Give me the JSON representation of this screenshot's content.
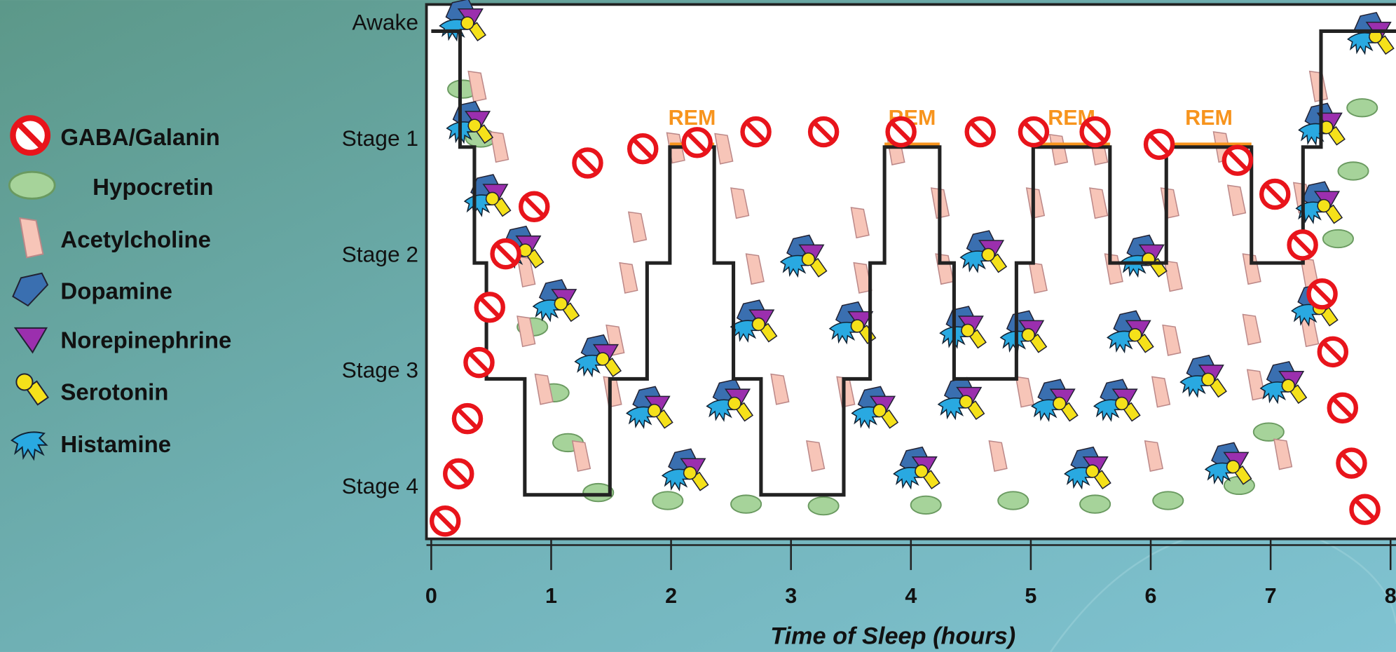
{
  "chart_data": {
    "type": "line",
    "x_label": "Time of Sleep (hours)",
    "x": [
      0,
      0.24,
      0.24,
      0.36,
      0.36,
      0.46,
      0.46,
      0.78,
      0.78,
      1.49,
      1.49,
      1.8,
      1.8,
      1.99,
      1.99,
      2.36,
      2.36,
      2.52,
      2.52,
      2.75,
      2.75,
      3.44,
      3.44,
      3.66,
      3.66,
      3.78,
      3.78,
      4.24,
      4.24,
      4.36,
      4.36,
      4.88,
      4.88,
      5.02,
      5.02,
      5.66,
      5.66,
      6.13,
      6.13,
      6.84,
      6.84,
      7.27,
      7.27,
      7.42,
      7.42,
      8.09
    ],
    "values": [
      0,
      0,
      1,
      1,
      2,
      2,
      3,
      3,
      4,
      4,
      3,
      3,
      2,
      2,
      1,
      1,
      2,
      2,
      3,
      3,
      4,
      4,
      3,
      3,
      2,
      2,
      1,
      1,
      2,
      2,
      3,
      3,
      2,
      2,
      1,
      1,
      2,
      2,
      1,
      1,
      2,
      2,
      1,
      1,
      0,
      0
    ],
    "color": "#222222",
    "xlim": [
      -0.04,
      8.09
    ],
    "xticks": [
      0,
      1,
      2,
      3,
      4,
      5,
      6,
      7,
      8
    ],
    "ylim": [
      4.38,
      -0.23
    ],
    "yticks": [
      {
        "value": 0,
        "label": "Awake"
      },
      {
        "value": 1,
        "label": "Stage 1"
      },
      {
        "value": 2,
        "label": "Stage 2"
      },
      {
        "value": 3,
        "label": "Stage 3"
      },
      {
        "value": 4,
        "label": "Stage 4"
      }
    ],
    "rem_color": "#f7941d",
    "rem_periods": [
      {
        "label": "REM",
        "start": 1.99,
        "end": 2.36
      },
      {
        "label": "REM",
        "start": 3.78,
        "end": 4.24
      },
      {
        "label": "REM",
        "start": 5.02,
        "end": 5.66
      },
      {
        "label": "REM",
        "start": 6.13,
        "end": 6.84
      }
    ],
    "legend": [
      {
        "name": "GABA/Galanin",
        "color": "#e8141b"
      },
      {
        "name": "Hypocretin",
        "color": "#a6d39a"
      },
      {
        "name": "Acetylcholine",
        "color": "#f7c5b8"
      },
      {
        "name": "Dopamine",
        "color": "#3a6fb0"
      },
      {
        "name": "Norepinephrine",
        "color": "#9b2fae"
      },
      {
        "name": "Serotonin",
        "color": "#f5e11a"
      },
      {
        "name": "Histamine",
        "color": "#29a9e1"
      }
    ]
  }
}
